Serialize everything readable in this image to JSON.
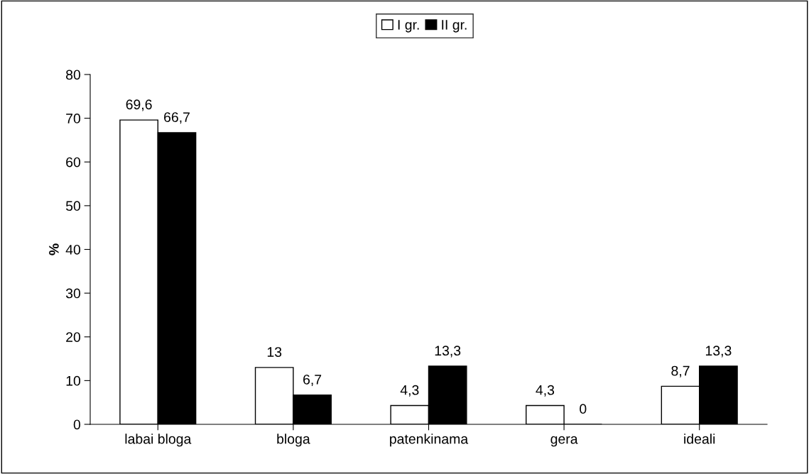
{
  "chart_data": {
    "type": "bar",
    "ylabel": "%",
    "categories": [
      "labai bloga",
      "bloga",
      "patenkinama",
      "gera",
      "ideali"
    ],
    "series": [
      {
        "name": "I gr.",
        "color": "#ffffff",
        "values": [
          69.6,
          13,
          4.3,
          4.3,
          8.7
        ],
        "value_labels": [
          "69,6",
          "13",
          "4,3",
          "4,3",
          "8,7"
        ]
      },
      {
        "name": "II gr.",
        "color": "#000000",
        "values": [
          66.7,
          6.7,
          13.3,
          0,
          13.3
        ],
        "value_labels": [
          "66,7",
          "6,7",
          "13,3",
          "0",
          "13,3"
        ]
      }
    ],
    "ylim": [
      0,
      80
    ],
    "yticks": [
      0,
      10,
      20,
      30,
      40,
      50,
      60,
      70,
      80
    ],
    "grid": false,
    "legend": "top"
  }
}
